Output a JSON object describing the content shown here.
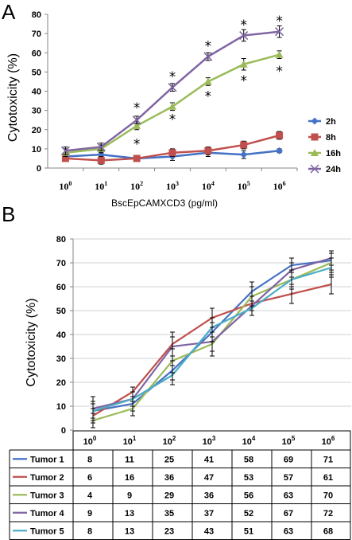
{
  "panels": {
    "a": "A",
    "b": "B"
  },
  "chart_data": [
    {
      "type": "line",
      "panel": "A",
      "ylabel": "Cytotoxicity (%)",
      "xlabel": "BscEpCAMXCD3 (pg/ml)",
      "x_ticks": [
        {
          "base": "10",
          "exp": "0"
        },
        {
          "base": "10",
          "exp": "1"
        },
        {
          "base": "10",
          "exp": "2"
        },
        {
          "base": "10",
          "exp": "3"
        },
        {
          "base": "10",
          "exp": "4"
        },
        {
          "base": "10",
          "exp": "5"
        },
        {
          "base": "10",
          "exp": "6"
        }
      ],
      "y_ticks": [
        "0",
        "10",
        "20",
        "30",
        "40",
        "50",
        "60",
        "70",
        "80"
      ],
      "ylim": [
        0,
        80
      ],
      "grid": false,
      "legend_position": "right",
      "series": [
        {
          "name": "2h",
          "color": "#4472c4",
          "marker": "diamond",
          "values": [
            6,
            7,
            5,
            6,
            8,
            7,
            9
          ],
          "errors": [
            1,
            1,
            1,
            2,
            2,
            2,
            1
          ]
        },
        {
          "name": "8h",
          "color": "#c0504d",
          "marker": "square",
          "values": [
            5,
            4,
            5,
            8,
            9,
            12,
            17
          ],
          "errors": [
            1,
            2,
            1,
            2,
            2,
            2,
            2
          ]
        },
        {
          "name": "16h",
          "color": "#9bbb59",
          "marker": "triangle",
          "values": [
            8,
            10,
            22,
            32,
            45,
            54,
            59
          ],
          "errors": [
            2,
            2,
            2,
            2,
            2,
            3,
            2
          ]
        },
        {
          "name": "24h",
          "color": "#8064a2",
          "marker": "x",
          "values": [
            9,
            11,
            25,
            42,
            58,
            69,
            71
          ],
          "errors": [
            2,
            2,
            2,
            2,
            2,
            3,
            3
          ]
        }
      ],
      "significance_marks": [
        {
          "x_index": 2,
          "y": 32,
          "symbol": "*"
        },
        {
          "x_index": 2,
          "y": 13,
          "symbol": "*"
        },
        {
          "x_index": 3,
          "y": 48,
          "symbol": "*"
        },
        {
          "x_index": 3,
          "y": 26,
          "symbol": "*"
        },
        {
          "x_index": 4,
          "y": 64,
          "symbol": "*"
        },
        {
          "x_index": 4,
          "y": 38,
          "symbol": "*"
        },
        {
          "x_index": 5,
          "y": 75,
          "symbol": "*"
        },
        {
          "x_index": 5,
          "y": 46,
          "symbol": "*"
        },
        {
          "x_index": 6,
          "y": 77,
          "symbol": "*"
        },
        {
          "x_index": 6,
          "y": 51,
          "symbol": "*"
        }
      ]
    },
    {
      "type": "line",
      "panel": "B",
      "ylabel": "Cytotoxicity (%)",
      "x_ticks": [
        {
          "base": "10",
          "exp": "0"
        },
        {
          "base": "10",
          "exp": "1"
        },
        {
          "base": "10",
          "exp": "2"
        },
        {
          "base": "10",
          "exp": "3"
        },
        {
          "base": "10",
          "exp": "4"
        },
        {
          "base": "10",
          "exp": "5"
        },
        {
          "base": "10",
          "exp": "6"
        }
      ],
      "y_ticks": [
        "0",
        "10",
        "20",
        "30",
        "40",
        "50",
        "60",
        "70",
        "80"
      ],
      "ylim": [
        0,
        80
      ],
      "grid": true,
      "legend_position": "data-table",
      "series": [
        {
          "name": "Tumor 1",
          "color": "#4472c4",
          "values": [
            8,
            11,
            25,
            41,
            58,
            69,
            71
          ],
          "errors": [
            3,
            3,
            4,
            4,
            4,
            3,
            4
          ]
        },
        {
          "name": "Tumor 2",
          "color": "#c0504d",
          "values": [
            6,
            16,
            36,
            47,
            53,
            57,
            61
          ],
          "errors": [
            3,
            2,
            5,
            4,
            3,
            4,
            4
          ]
        },
        {
          "name": "Tumor 3",
          "color": "#9bbb59",
          "values": [
            4,
            9,
            29,
            36,
            56,
            63,
            70
          ],
          "errors": [
            3,
            3,
            5,
            5,
            4,
            3,
            4
          ]
        },
        {
          "name": "Tumor 4",
          "color": "#8064a2",
          "values": [
            9,
            13,
            35,
            37,
            52,
            67,
            72
          ],
          "errors": [
            5,
            3,
            4,
            4,
            4,
            3,
            3
          ]
        },
        {
          "name": "Tumor 5",
          "color": "#4bacc6",
          "values": [
            8,
            13,
            23,
            43,
            51,
            63,
            68
          ],
          "errors": [
            4,
            3,
            4,
            4,
            3,
            4,
            4
          ]
        }
      ]
    }
  ]
}
